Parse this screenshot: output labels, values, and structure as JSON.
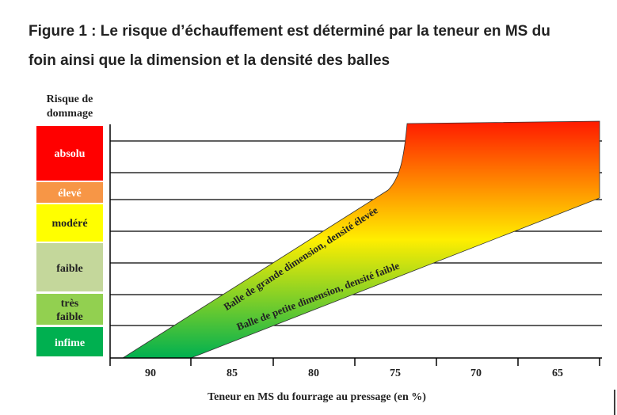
{
  "header": {
    "title_line1": "Figure 1 : Le risque d’échauffement est déterminé par la teneur en MS du",
    "title_line2": "foin ainsi que la dimension et la densité des balles"
  },
  "risk": {
    "title_line1": "Risque de",
    "title_line2": "dommage",
    "levels": [
      "absolu",
      "élevé",
      "modéré",
      "faible",
      "très",
      "faible",
      "infime"
    ]
  },
  "bands": {
    "large": "Balle de grande dimension, densité élevée",
    "small": "Balle de petite dimension, densité faible"
  },
  "x_axis": {
    "ticks": [
      "90",
      "85",
      "80",
      "75",
      "70",
      "65"
    ],
    "label": "Teneur en MS du fourrage au pressage (en %)"
  }
}
